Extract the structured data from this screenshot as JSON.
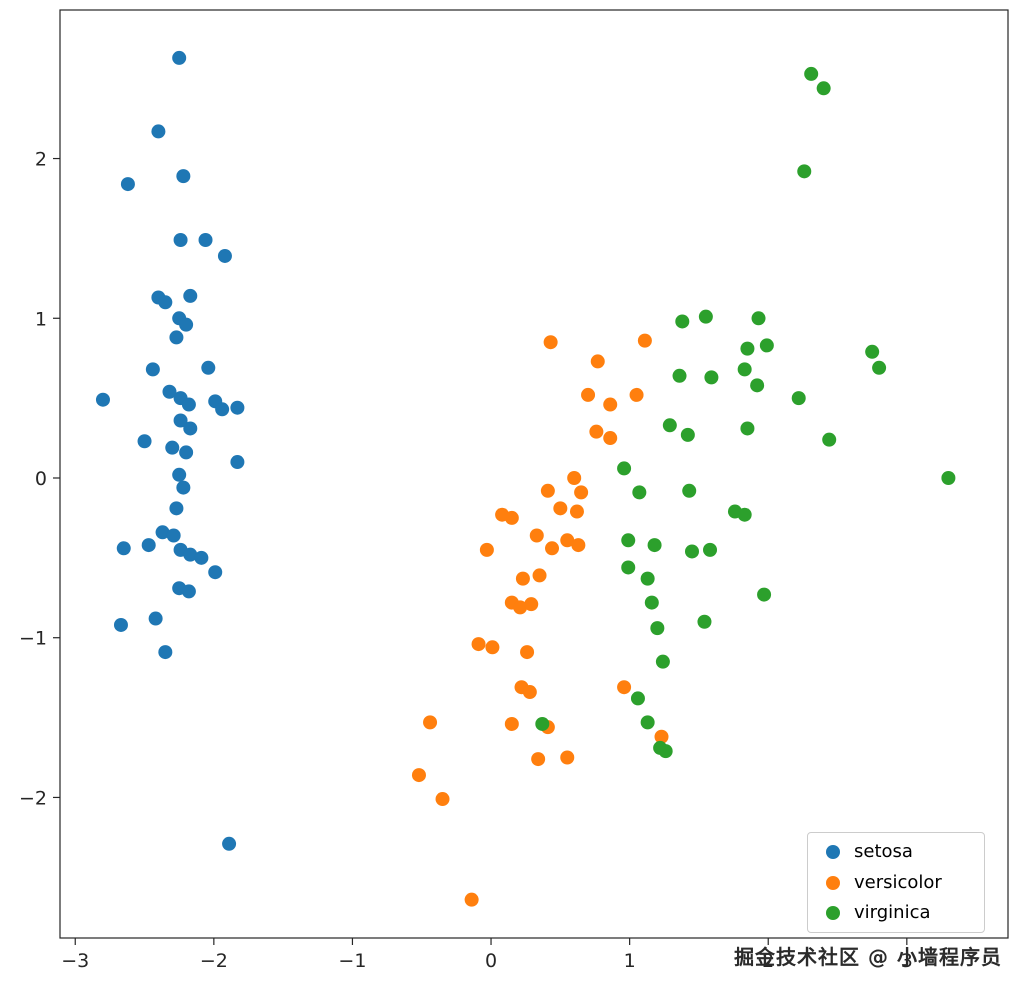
{
  "watermark": "掘金技术社区 @ 小墙程序员",
  "chart_data": {
    "type": "scatter",
    "title": "",
    "xlabel": "",
    "ylabel": "",
    "xlim": [
      -3.11,
      3.73
    ],
    "ylim": [
      -2.88,
      2.93
    ],
    "xticks": [
      -3,
      -2,
      -1,
      0,
      1,
      2,
      3
    ],
    "yticks": [
      -2,
      -1,
      0,
      1,
      2
    ],
    "grid": false,
    "legend_position": "lower right",
    "marker_radius": 7,
    "axis_color": "#262626",
    "series": [
      {
        "name": "setosa",
        "color": "#1f77b4",
        "points": [
          [
            -2.25,
            2.63
          ],
          [
            -2.4,
            2.17
          ],
          [
            -2.62,
            1.84
          ],
          [
            -2.22,
            1.89
          ],
          [
            -2.24,
            1.49
          ],
          [
            -2.06,
            1.49
          ],
          [
            -1.92,
            1.39
          ],
          [
            -2.4,
            1.13
          ],
          [
            -2.35,
            1.1
          ],
          [
            -2.17,
            1.14
          ],
          [
            -2.25,
            1.0
          ],
          [
            -2.2,
            0.96
          ],
          [
            -2.27,
            0.88
          ],
          [
            -2.44,
            0.68
          ],
          [
            -2.04,
            0.69
          ],
          [
            -2.8,
            0.49
          ],
          [
            -2.32,
            0.54
          ],
          [
            -2.24,
            0.5
          ],
          [
            -2.18,
            0.46
          ],
          [
            -1.99,
            0.48
          ],
          [
            -1.94,
            0.43
          ],
          [
            -1.83,
            0.44
          ],
          [
            -2.24,
            0.36
          ],
          [
            -2.17,
            0.31
          ],
          [
            -2.5,
            0.23
          ],
          [
            -2.3,
            0.19
          ],
          [
            -2.2,
            0.16
          ],
          [
            -1.83,
            0.1
          ],
          [
            -2.25,
            0.02
          ],
          [
            -2.22,
            -0.06
          ],
          [
            -2.27,
            -0.19
          ],
          [
            -2.37,
            -0.34
          ],
          [
            -2.29,
            -0.36
          ],
          [
            -2.47,
            -0.42
          ],
          [
            -2.65,
            -0.44
          ],
          [
            -2.24,
            -0.45
          ],
          [
            -2.17,
            -0.48
          ],
          [
            -2.09,
            -0.5
          ],
          [
            -1.99,
            -0.59
          ],
          [
            -2.25,
            -0.69
          ],
          [
            -2.18,
            -0.71
          ],
          [
            -2.67,
            -0.92
          ],
          [
            -2.42,
            -0.88
          ],
          [
            -2.35,
            -1.09
          ],
          [
            -1.89,
            -2.29
          ]
        ]
      },
      {
        "name": "versicolor",
        "color": "#ff7f0e",
        "points": [
          [
            0.43,
            0.85
          ],
          [
            1.11,
            0.86
          ],
          [
            0.77,
            0.73
          ],
          [
            0.7,
            0.52
          ],
          [
            1.05,
            0.52
          ],
          [
            0.86,
            0.46
          ],
          [
            0.76,
            0.29
          ],
          [
            0.86,
            0.25
          ],
          [
            0.6,
            0.0
          ],
          [
            0.65,
            -0.09
          ],
          [
            0.41,
            -0.08
          ],
          [
            0.5,
            -0.19
          ],
          [
            0.62,
            -0.21
          ],
          [
            0.08,
            -0.23
          ],
          [
            0.15,
            -0.25
          ],
          [
            0.33,
            -0.36
          ],
          [
            0.55,
            -0.39
          ],
          [
            0.44,
            -0.44
          ],
          [
            -0.03,
            -0.45
          ],
          [
            0.63,
            -0.42
          ],
          [
            0.23,
            -0.63
          ],
          [
            0.35,
            -0.61
          ],
          [
            0.15,
            -0.78
          ],
          [
            0.21,
            -0.81
          ],
          [
            0.29,
            -0.79
          ],
          [
            0.01,
            -1.06
          ],
          [
            -0.09,
            -1.04
          ],
          [
            0.26,
            -1.09
          ],
          [
            0.96,
            -1.31
          ],
          [
            0.22,
            -1.31
          ],
          [
            0.28,
            -1.34
          ],
          [
            0.15,
            -1.54
          ],
          [
            0.41,
            -1.56
          ],
          [
            -0.44,
            -1.53
          ],
          [
            0.55,
            -1.75
          ],
          [
            0.34,
            -1.76
          ],
          [
            -0.52,
            -1.86
          ],
          [
            -0.35,
            -2.01
          ],
          [
            -0.14,
            -2.64
          ],
          [
            1.23,
            -1.62
          ]
        ]
      },
      {
        "name": "virginica",
        "color": "#2ca02c",
        "points": [
          [
            2.31,
            2.53
          ],
          [
            2.4,
            2.44
          ],
          [
            2.26,
            1.92
          ],
          [
            1.38,
            0.98
          ],
          [
            1.55,
            1.01
          ],
          [
            1.93,
            1.0
          ],
          [
            1.99,
            0.83
          ],
          [
            1.85,
            0.81
          ],
          [
            2.75,
            0.79
          ],
          [
            2.8,
            0.69
          ],
          [
            1.36,
            0.64
          ],
          [
            1.59,
            0.63
          ],
          [
            1.83,
            0.68
          ],
          [
            1.92,
            0.58
          ],
          [
            2.22,
            0.5
          ],
          [
            1.29,
            0.33
          ],
          [
            1.42,
            0.27
          ],
          [
            1.85,
            0.31
          ],
          [
            2.44,
            0.24
          ],
          [
            3.3,
            0.0
          ],
          [
            0.96,
            0.06
          ],
          [
            1.07,
            -0.09
          ],
          [
            1.43,
            -0.08
          ],
          [
            1.76,
            -0.21
          ],
          [
            1.83,
            -0.23
          ],
          [
            0.99,
            -0.39
          ],
          [
            1.18,
            -0.42
          ],
          [
            1.45,
            -0.46
          ],
          [
            1.58,
            -0.45
          ],
          [
            0.99,
            -0.56
          ],
          [
            1.13,
            -0.63
          ],
          [
            1.97,
            -0.73
          ],
          [
            1.16,
            -0.78
          ],
          [
            1.2,
            -0.94
          ],
          [
            1.54,
            -0.9
          ],
          [
            1.24,
            -1.15
          ],
          [
            1.06,
            -1.38
          ],
          [
            1.13,
            -1.53
          ],
          [
            0.37,
            -1.54
          ],
          [
            1.22,
            -1.69
          ],
          [
            1.26,
            -1.71
          ]
        ]
      }
    ]
  }
}
